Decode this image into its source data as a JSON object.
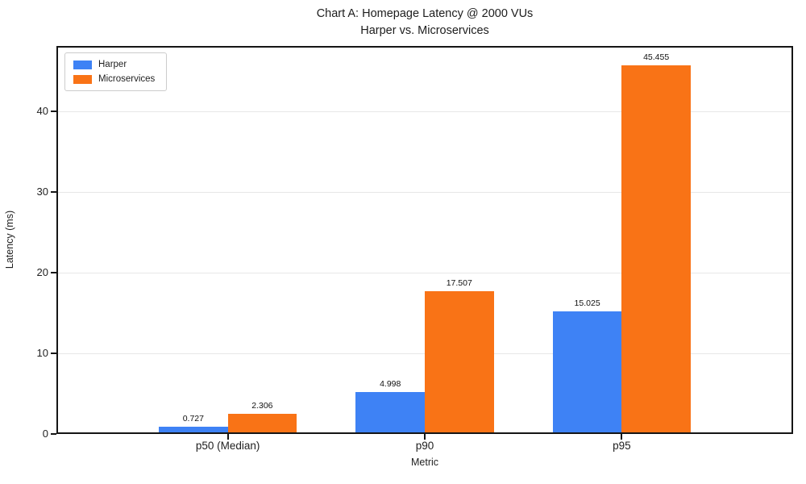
{
  "chart_data": {
    "type": "bar",
    "title": "Chart A: Homepage Latency @ 2000 VUs",
    "subtitle": "Harper vs. Microservices",
    "xlabel": "Metric",
    "ylabel": "Latency (ms)",
    "categories": [
      "p50 (Median)",
      "p90",
      "p95"
    ],
    "series": [
      {
        "name": "Harper",
        "color": "#3E82F5",
        "values": [
          0.727,
          4.998,
          15.025
        ],
        "value_labels": [
          "0.727",
          "4.998",
          "15.025"
        ]
      },
      {
        "name": "Microservices",
        "color": "#F97316",
        "values": [
          2.306,
          17.507,
          45.455
        ],
        "value_labels": [
          "2.306",
          "17.507",
          "45.455"
        ]
      }
    ],
    "ylim": [
      0,
      48.1
    ],
    "yticks": [
      0,
      10,
      20,
      30,
      40
    ],
    "grid": "horizontal",
    "gridline_color": "#e7e7e7",
    "legend_position": "upper-left",
    "bar_group_width_fraction": 0.7,
    "spine_color": "#151515",
    "background_color": "#ffffff"
  }
}
